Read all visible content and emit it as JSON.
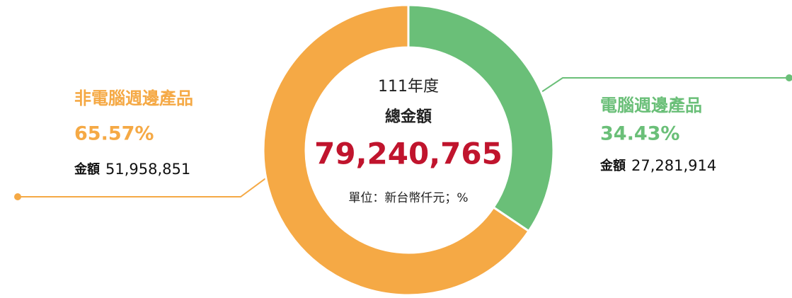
{
  "chart_data": {
    "type": "pie",
    "center_title": "111年度",
    "center_subtitle": "總金額",
    "total": {
      "value": 79240765,
      "label": "79,240,765"
    },
    "unit_note": "單位：新台幣仟元；%",
    "amount_prefix": "金額",
    "categories": [
      "電腦週邊產品",
      "非電腦週邊產品"
    ],
    "values": [
      34.43,
      65.57
    ],
    "value_labels": [
      "34.43%",
      "65.57%"
    ],
    "amounts": [
      {
        "value": 27281914,
        "label": "27,281,914"
      },
      {
        "value": 51958851,
        "label": "51,958,851"
      }
    ],
    "colors": [
      "#6abf78",
      "#f5a945"
    ]
  }
}
